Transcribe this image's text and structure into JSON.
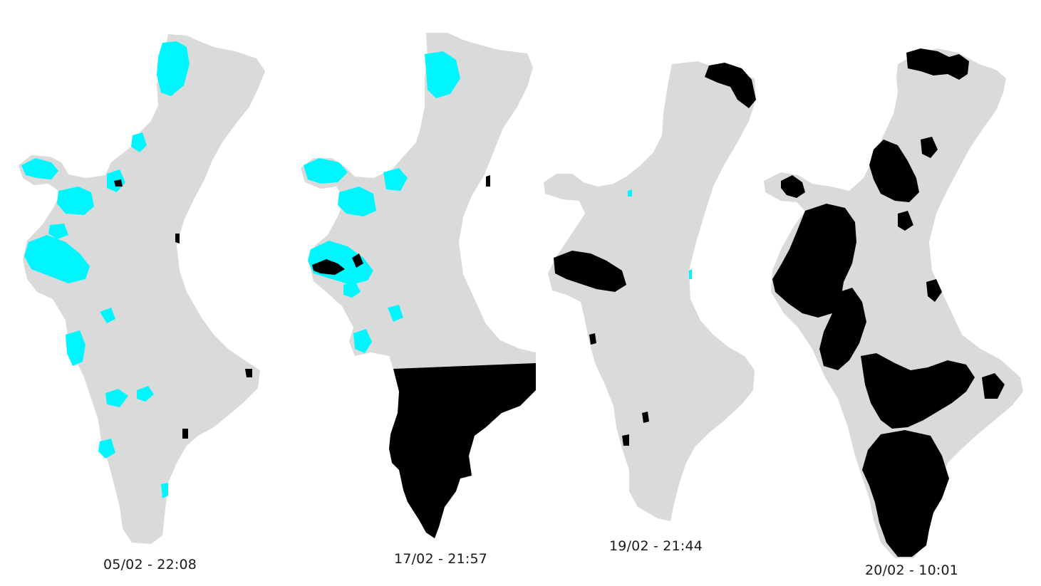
{
  "panels": [
    {
      "caption": "05/02 - 22:08"
    },
    {
      "caption": "17/02 - 21:57"
    },
    {
      "caption": "19/02 - 21:44"
    },
    {
      "caption": "20/02 - 10:01"
    }
  ],
  "colors": {
    "land": "#dadada",
    "cloud": "#00f6ff",
    "mask": "#000000",
    "background": "#ffffff"
  }
}
